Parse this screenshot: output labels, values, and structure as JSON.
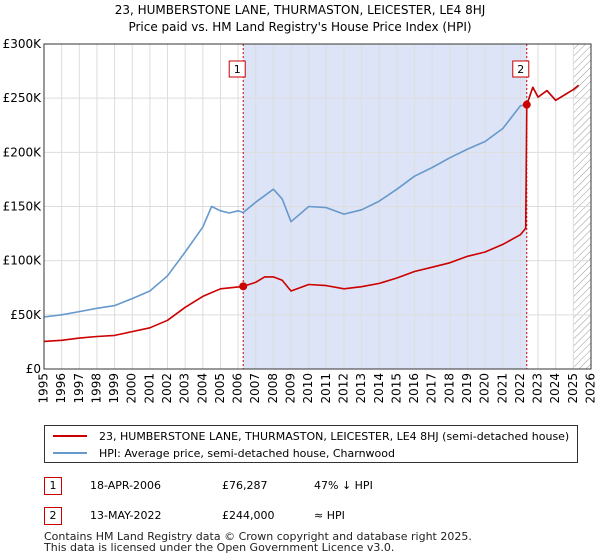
{
  "chart_data": {
    "type": "line",
    "title": "23, HUMBERSTONE LANE, THURMASTON, LEICESTER, LE4 8HJ",
    "subtitle": "Price paid vs. HM Land Registry's House Price Index (HPI)",
    "xlabel": "",
    "ylabel": "",
    "xlim": [
      1995,
      2026
    ],
    "ylim": [
      0,
      300000
    ],
    "grid": true,
    "legend_position": "bottom",
    "x_ticks": [
      "1995",
      "1996",
      "1997",
      "1998",
      "1999",
      "2000",
      "2001",
      "2002",
      "2003",
      "2004",
      "2005",
      "2006",
      "2007",
      "2008",
      "2009",
      "2010",
      "2011",
      "2012",
      "2013",
      "2014",
      "2015",
      "2016",
      "2017",
      "2018",
      "2019",
      "2020",
      "2021",
      "2022",
      "2023",
      "2024",
      "2025",
      "2026"
    ],
    "y_ticks": [
      {
        "value": 0,
        "label": "£0"
      },
      {
        "value": 50000,
        "label": "£50K"
      },
      {
        "value": 100000,
        "label": "£100K"
      },
      {
        "value": 150000,
        "label": "£150K"
      },
      {
        "value": 200000,
        "label": "£200K"
      },
      {
        "value": 250000,
        "label": "£250K"
      },
      {
        "value": 300000,
        "label": "£300K"
      }
    ],
    "shaded_region": {
      "from": 2006.29,
      "to": 2022.36,
      "color": "#dde4f7"
    },
    "future_hatch_from": 2025.0,
    "series": [
      {
        "name": "23, HUMBERSTONE LANE, THURMASTON, LEICESTER, LE4 8HJ (semi-detached house)",
        "color": "#cc0000",
        "x": [
          1995.0,
          1996.0,
          1997.0,
          1998.0,
          1999.0,
          2000.0,
          2001.0,
          2002.0,
          2003.0,
          2004.0,
          2005.0,
          2006.29,
          2007.0,
          2007.5,
          2008.0,
          2008.5,
          2009.0,
          2009.5,
          2010.0,
          2011.0,
          2012.0,
          2013.0,
          2014.0,
          2015.0,
          2016.0,
          2017.0,
          2018.0,
          2019.0,
          2020.0,
          2021.0,
          2022.0,
          2022.3,
          2022.36,
          2022.7,
          2023.0,
          2023.5,
          2024.0,
          2024.5,
          2025.0,
          2025.3
        ],
        "values": [
          25500,
          26500,
          28500,
          30000,
          31000,
          34500,
          38000,
          45000,
          57000,
          67000,
          74000,
          76287,
          80000,
          85000,
          85000,
          82000,
          72000,
          75000,
          78000,
          77000,
          74000,
          76000,
          79000,
          84000,
          90000,
          94000,
          98000,
          104000,
          108000,
          115000,
          124000,
          130000,
          244000,
          260000,
          251000,
          257000,
          248000,
          253000,
          258000,
          262000
        ]
      },
      {
        "name": "HPI: Average price, semi-detached house, Charnwood",
        "color": "#6699cc",
        "x": [
          1995.0,
          1996.0,
          1997.0,
          1998.0,
          1999.0,
          2000.0,
          2001.0,
          2002.0,
          2003.0,
          2004.0,
          2004.5,
          2005.0,
          2005.5,
          2006.0,
          2006.29,
          2007.0,
          2007.5,
          2008.0,
          2008.5,
          2009.0,
          2009.5,
          2010.0,
          2011.0,
          2012.0,
          2013.0,
          2014.0,
          2015.0,
          2016.0,
          2017.0,
          2018.0,
          2019.0,
          2020.0,
          2021.0,
          2022.0,
          2022.36,
          2022.7,
          2023.0,
          2023.5,
          2024.0,
          2024.5,
          2025.0,
          2025.3
        ],
        "values": [
          48000,
          50000,
          53000,
          56000,
          58500,
          65000,
          72000,
          86000,
          108000,
          131000,
          150000,
          146000,
          144000,
          146000,
          144500,
          154000,
          160000,
          166000,
          157000,
          136000,
          143000,
          150000,
          149000,
          143000,
          147000,
          155000,
          166000,
          178000,
          186000,
          195000,
          203000,
          210000,
          222000,
          243000,
          244000,
          260000,
          251000,
          257000,
          248000,
          253000,
          258000,
          262000
        ]
      }
    ],
    "markers": [
      {
        "label": "1",
        "x": 2006.29,
        "price": 76287
      },
      {
        "label": "2",
        "x": 2022.36,
        "price": 244000
      }
    ]
  },
  "legend": {
    "property": "23, HUMBERSTONE LANE, THURMASTON, LEICESTER, LE4 8HJ (semi-detached house)",
    "hpi": "HPI: Average price, semi-detached house, Charnwood"
  },
  "transactions": [
    {
      "id": "1",
      "date": "18-APR-2006",
      "price": "£76,287",
      "hpi": "47% ↓ HPI"
    },
    {
      "id": "2",
      "date": "13-MAY-2022",
      "price": "£244,000",
      "hpi": "≈ HPI"
    }
  ],
  "footer": {
    "line1": "Contains HM Land Registry data © Crown copyright and database right 2025.",
    "line2": "This data is licensed under the Open Government Licence v3.0."
  },
  "colors": {
    "property": "#cc0000",
    "hpi": "#6699cc",
    "shade": "#dde4f7",
    "grid": "#dddddd"
  }
}
